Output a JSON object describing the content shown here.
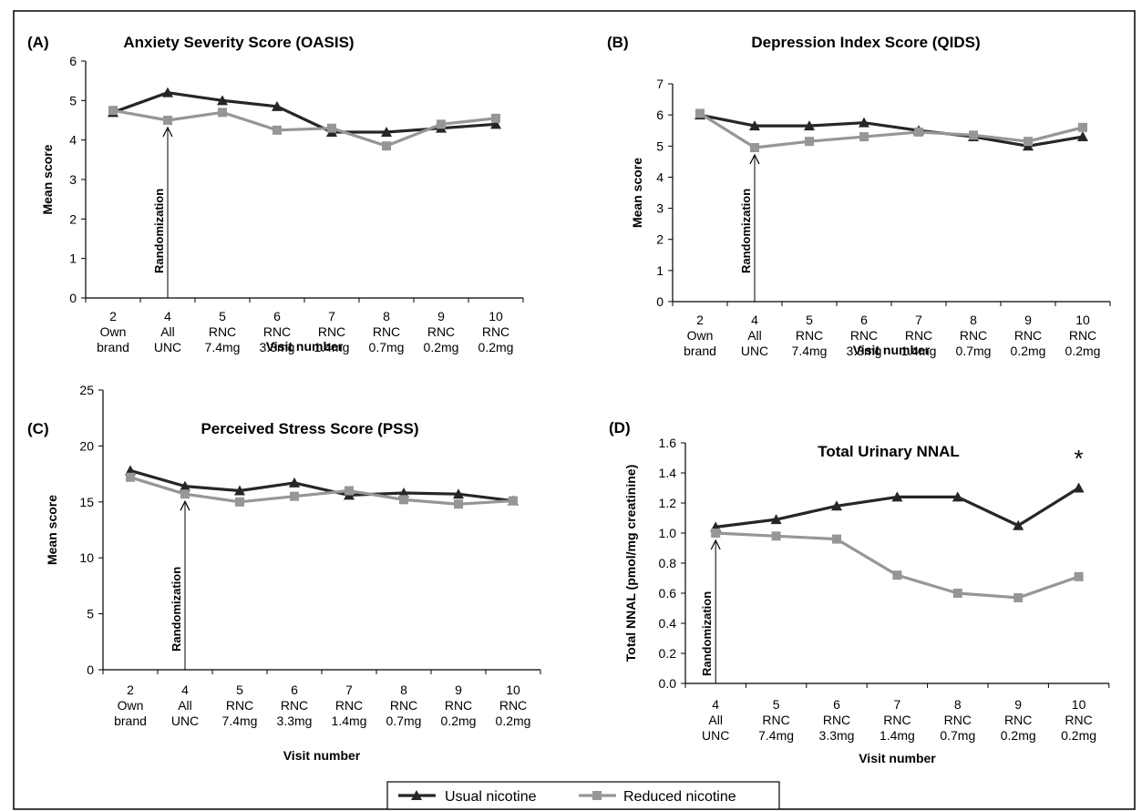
{
  "colors": {
    "usual": "#262626",
    "reduced": "#969696",
    "axis": "#000000",
    "background": "#ffffff"
  },
  "legend": {
    "usual_label": "Usual nicotine",
    "reduced_label": "Reduced nicotine",
    "position": "bottom-center"
  },
  "chart_data": [
    {
      "type": "line",
      "panel": "(A)",
      "title": "Anxiety Severity Score (OASIS)",
      "xlabel": "Visit number",
      "ylabel": "Mean score",
      "ylim": [
        0,
        6
      ],
      "yticks": [
        "0",
        "1",
        "2",
        "3",
        "4",
        "5",
        "6"
      ],
      "categories": [
        [
          "2",
          "Own",
          "brand"
        ],
        [
          "4",
          "All",
          "UNC"
        ],
        [
          "5",
          "RNC",
          "7.4mg"
        ],
        [
          "6",
          "RNC",
          "3.3mg"
        ],
        [
          "7",
          "RNC",
          "1.4mg"
        ],
        [
          "8",
          "RNC",
          "0.7mg"
        ],
        [
          "9",
          "RNC",
          "0.2mg"
        ],
        [
          "10",
          "RNC",
          "0.2mg"
        ]
      ],
      "series": [
        {
          "name": "Usual nicotine",
          "values": [
            4.7,
            5.2,
            5.0,
            4.85,
            4.2,
            4.2,
            4.3,
            4.4
          ]
        },
        {
          "name": "Reduced nicotine",
          "values": [
            4.75,
            4.5,
            4.7,
            4.25,
            4.3,
            3.85,
            4.4,
            4.55
          ]
        }
      ],
      "annotation": {
        "text": "Randomization",
        "category_index": 1,
        "value": 4.5
      }
    },
    {
      "type": "line",
      "panel": "(B)",
      "title": "Depression Index Score (QIDS)",
      "xlabel": "Visit number",
      "ylabel": "Mean score",
      "ylim": [
        0,
        7
      ],
      "yticks": [
        "0",
        "1",
        "2",
        "3",
        "4",
        "5",
        "6",
        "7"
      ],
      "categories": [
        [
          "2",
          "Own",
          "brand"
        ],
        [
          "4",
          "All",
          "UNC"
        ],
        [
          "5",
          "RNC",
          "7.4mg"
        ],
        [
          "6",
          "RNC",
          "3.3mg"
        ],
        [
          "7",
          "RNC",
          "1.4mg"
        ],
        [
          "8",
          "RNC",
          "0.7mg"
        ],
        [
          "9",
          "RNC",
          "0.2mg"
        ],
        [
          "10",
          "RNC",
          "0.2mg"
        ]
      ],
      "series": [
        {
          "name": "Usual nicotine",
          "values": [
            6.0,
            5.65,
            5.65,
            5.75,
            5.5,
            5.3,
            5.0,
            5.3
          ]
        },
        {
          "name": "Reduced nicotine",
          "values": [
            6.05,
            4.95,
            5.15,
            5.3,
            5.45,
            5.35,
            5.15,
            5.6
          ]
        }
      ],
      "annotation": {
        "text": "Randomization",
        "category_index": 1,
        "value": 4.95
      }
    },
    {
      "type": "line",
      "panel": "(C)",
      "title": "Perceived Stress Score (PSS)",
      "xlabel": "Visit number",
      "ylabel": "Mean score",
      "ylim": [
        0,
        25
      ],
      "yticks": [
        "0",
        "5",
        "10",
        "15",
        "20",
        "25"
      ],
      "categories": [
        [
          "2",
          "Own",
          "brand"
        ],
        [
          "4",
          "All",
          "UNC"
        ],
        [
          "5",
          "RNC",
          "7.4mg"
        ],
        [
          "6",
          "RNC",
          "3.3mg"
        ],
        [
          "7",
          "RNC",
          "1.4mg"
        ],
        [
          "8",
          "RNC",
          "0.7mg"
        ],
        [
          "9",
          "RNC",
          "0.2mg"
        ],
        [
          "10",
          "RNC",
          "0.2mg"
        ]
      ],
      "series": [
        {
          "name": "Usual nicotine",
          "values": [
            17.8,
            16.4,
            16.0,
            16.7,
            15.6,
            15.8,
            15.7,
            15.1
          ]
        },
        {
          "name": "Reduced nicotine",
          "values": [
            17.2,
            15.7,
            15.0,
            15.5,
            16.0,
            15.2,
            14.8,
            15.1
          ]
        }
      ],
      "annotation": {
        "text": "Randomization",
        "category_index": 1,
        "value": 15.7
      }
    },
    {
      "type": "line",
      "panel": "(D)",
      "title": "Total Urinary NNAL",
      "xlabel": "Visit number",
      "ylabel": "Total NNAL (pmol/mg creatinine)",
      "ylim": [
        0,
        1.6
      ],
      "yticks": [
        "0.0",
        "0.2",
        "0.4",
        "0.6",
        "0.8",
        "1.0",
        "1.2",
        "1.4",
        "1.6"
      ],
      "categories": [
        [
          "4",
          "All",
          "UNC"
        ],
        [
          "5",
          "RNC",
          "7.4mg"
        ],
        [
          "6",
          "RNC",
          "3.3mg"
        ],
        [
          "7",
          "RNC",
          "1.4mg"
        ],
        [
          "8",
          "RNC",
          "0.7mg"
        ],
        [
          "9",
          "RNC",
          "0.2mg"
        ],
        [
          "10",
          "RNC",
          "0.2mg"
        ]
      ],
      "series": [
        {
          "name": "Usual nicotine",
          "values": [
            1.04,
            1.09,
            1.18,
            1.24,
            1.24,
            1.05,
            1.3
          ]
        },
        {
          "name": "Reduced nicotine",
          "values": [
            1.0,
            0.98,
            0.96,
            0.72,
            0.6,
            0.57,
            0.71
          ]
        }
      ],
      "annotation": {
        "text": "Randomization",
        "category_index": 0,
        "value": 1.0
      },
      "significance_marker": {
        "text": "*",
        "category_index": 6
      }
    }
  ]
}
